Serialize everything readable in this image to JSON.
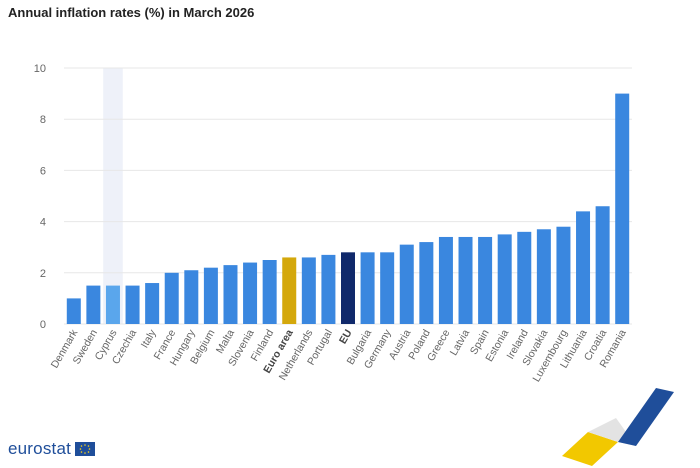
{
  "chart_data": {
    "type": "bar",
    "title": "Annual inflation rates (%) in March 2026",
    "xlabel": "",
    "ylabel": "",
    "ylim": [
      0,
      10
    ],
    "yticks": [
      0,
      2,
      4,
      6,
      8,
      10
    ],
    "grid": true,
    "categories": [
      "Denmark",
      "Sweden",
      "Cyprus",
      "Czechia",
      "Italy",
      "France",
      "Hungary",
      "Belgium",
      "Malta",
      "Slovenia",
      "Finland",
      "Euro area",
      "Netherlands",
      "Portugal",
      "EU",
      "Bulgaria",
      "Germany",
      "Austria",
      "Poland",
      "Greece",
      "Latvia",
      "Spain",
      "Estonia",
      "Ireland",
      "Slovakia",
      "Luxembourg",
      "Lithuania",
      "Croatia",
      "Romania"
    ],
    "values": [
      1.0,
      1.5,
      1.5,
      1.5,
      1.6,
      2.0,
      2.1,
      2.2,
      2.3,
      2.4,
      2.5,
      2.6,
      2.6,
      2.7,
      2.8,
      2.8,
      2.8,
      3.1,
      3.2,
      3.4,
      3.4,
      3.4,
      3.5,
      3.6,
      3.7,
      3.8,
      4.4,
      4.6,
      9.0
    ],
    "highlighted": {
      "Euro area": "#d4a80c",
      "EU": "#10296b",
      "Cyprus": "#5aa6ec"
    },
    "bold_categories": [
      "Euro area",
      "EU"
    ],
    "hover_category": "Cyprus",
    "colors": {
      "bar": "#3a87df",
      "grid": "#e7e7e7",
      "tick_text": "#666666",
      "hover_band": "#eef1f9"
    }
  },
  "brand": {
    "name": "eurostat",
    "flag_icon": "eu-flag-icon",
    "corner_logo": "eurostat-chevron-logo-icon"
  }
}
